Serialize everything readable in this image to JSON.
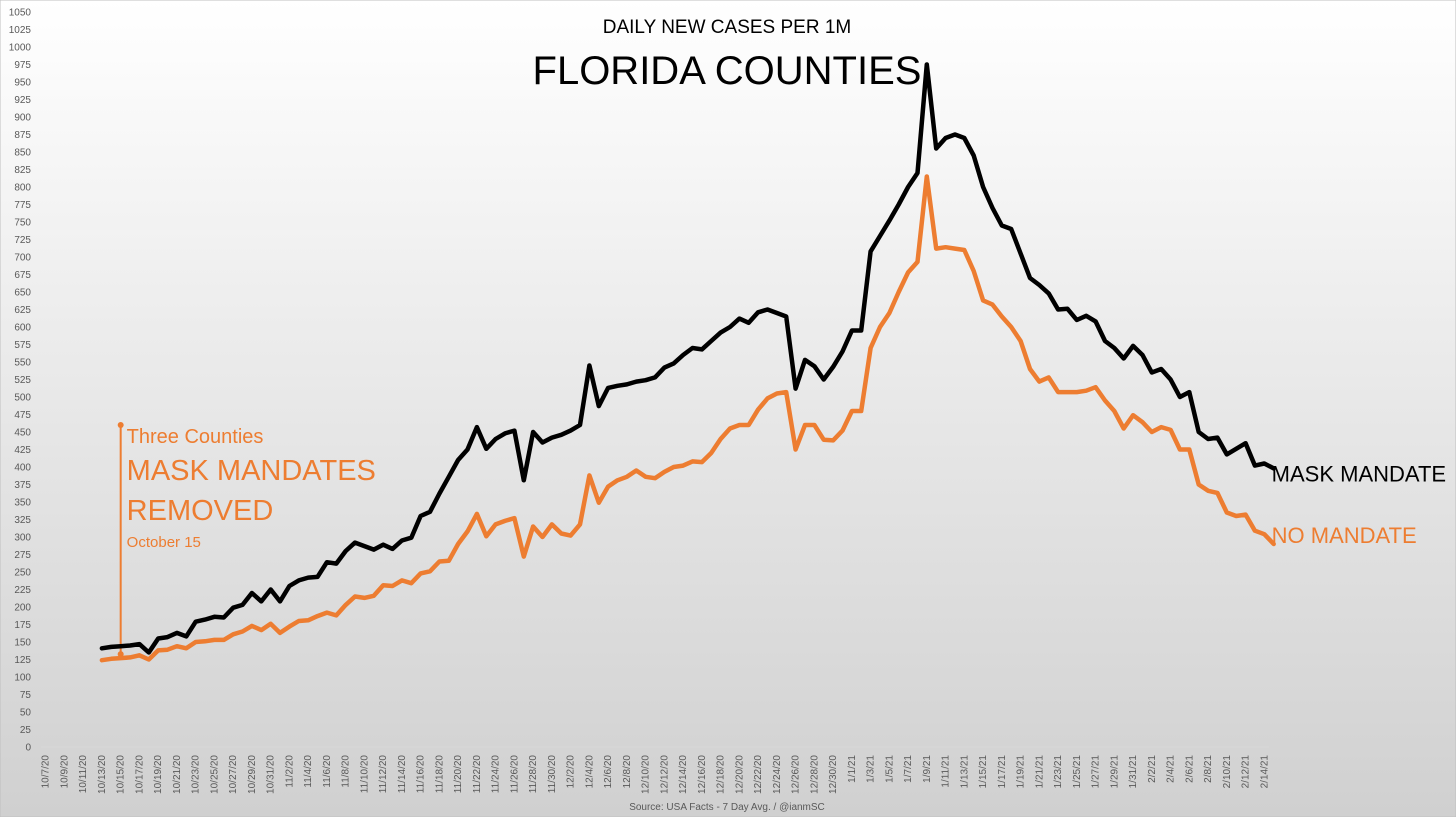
{
  "chart_data": {
    "type": "line",
    "title": "FLORIDA COUNTIES",
    "subtitle": "DAILY NEW CASES PER 1M",
    "source": "Source: USA Facts - 7 Day Avg. / @ianmSC",
    "xlabel": "",
    "ylabel": "",
    "ylim": [
      0,
      1050
    ],
    "ytick_step": 25,
    "grid": false,
    "x_tick_labels": [
      "10/7/20",
      "10/9/20",
      "10/11/20",
      "10/13/20",
      "10/15/20",
      "10/17/20",
      "10/19/20",
      "10/21/20",
      "10/23/20",
      "10/25/20",
      "10/27/20",
      "10/29/20",
      "10/31/20",
      "11/2/20",
      "11/4/20",
      "11/6/20",
      "11/8/20",
      "11/10/20",
      "11/12/20",
      "11/14/20",
      "11/16/20",
      "11/18/20",
      "11/20/20",
      "11/22/20",
      "11/24/20",
      "11/26/20",
      "11/28/20",
      "11/30/20",
      "12/2/20",
      "12/4/20",
      "12/6/20",
      "12/8/20",
      "12/10/20",
      "12/12/20",
      "12/14/20",
      "12/16/20",
      "12/18/20",
      "12/20/20",
      "12/22/20",
      "12/24/20",
      "12/26/20",
      "12/28/20",
      "12/30/20",
      "1/1/21",
      "1/3/21",
      "1/5/21",
      "1/7/21",
      "1/9/21",
      "1/11/21",
      "1/13/21",
      "1/15/21",
      "1/17/21",
      "1/19/21",
      "1/21/21",
      "1/23/21",
      "1/25/21",
      "1/27/21",
      "1/29/21",
      "1/31/21",
      "2/2/21",
      "2/4/21",
      "2/6/21",
      "2/8/21",
      "2/10/21",
      "2/12/21",
      "2/14/21"
    ],
    "x_start_date": "10/7/20",
    "series": [
      {
        "name": "MASK MANDATE",
        "color": "#000000",
        "start_day_index": 6,
        "values": [
          141,
          143,
          144,
          145,
          147,
          135,
          155,
          157,
          163,
          158,
          179,
          182,
          186,
          185,
          199,
          203,
          220,
          208,
          225,
          208,
          230,
          238,
          242,
          243,
          264,
          262,
          280,
          292,
          287,
          282,
          289,
          283,
          295,
          299,
          330,
          336,
          362,
          386,
          410,
          425,
          457,
          426,
          440,
          448,
          452,
          381,
          450,
          435,
          442,
          446,
          452,
          460,
          545,
          487,
          513,
          516,
          518,
          522,
          524,
          528,
          542,
          548,
          560,
          570,
          568,
          580,
          592,
          600,
          612,
          606,
          621,
          625,
          620,
          615,
          512,
          553,
          544,
          525,
          543,
          565,
          595,
          595,
          708,
          730,
          752,
          775,
          800,
          820,
          975,
          855,
          870,
          875,
          870,
          845,
          800,
          770,
          745,
          740,
          705,
          670,
          660,
          648,
          625,
          626,
          610,
          616,
          608,
          580,
          570,
          555,
          573,
          560,
          535,
          540,
          525,
          500,
          507,
          450,
          440,
          442,
          418,
          426,
          434,
          402,
          405,
          398
        ]
      },
      {
        "name": "NO MANDATE",
        "color": "#ED7D31",
        "start_day_index": 6,
        "values": [
          124,
          126,
          127,
          128,
          131,
          125,
          138,
          139,
          144,
          141,
          150,
          151,
          153,
          153,
          161,
          165,
          173,
          167,
          176,
          163,
          172,
          180,
          181,
          187,
          192,
          188,
          203,
          215,
          213,
          216,
          231,
          230,
          238,
          234,
          248,
          251,
          265,
          266,
          290,
          308,
          333,
          301,
          318,
          323,
          327,
          272,
          315,
          300,
          318,
          305,
          302,
          318,
          388,
          349,
          372,
          381,
          386,
          395,
          386,
          384,
          393,
          400,
          402,
          408,
          407,
          420,
          440,
          455,
          460,
          460,
          482,
          498,
          505,
          507,
          425,
          460,
          460,
          439,
          438,
          452,
          480,
          480,
          570,
          600,
          620,
          650,
          678,
          693,
          815,
          712,
          714,
          712,
          710,
          680,
          638,
          632,
          615,
          600,
          580,
          540,
          522,
          528,
          507,
          507,
          507,
          509,
          514,
          495,
          480,
          455,
          474,
          464,
          450,
          457,
          453,
          425,
          425,
          375,
          366,
          363,
          335,
          330,
          332,
          309,
          304,
          290
        ]
      }
    ],
    "annotation": {
      "event_date": "10/15/20",
      "line1": "Three Counties",
      "line2": "MASK MANDATES",
      "line3": "REMOVED",
      "line4": "October 15",
      "color": "#ED7D31"
    }
  }
}
